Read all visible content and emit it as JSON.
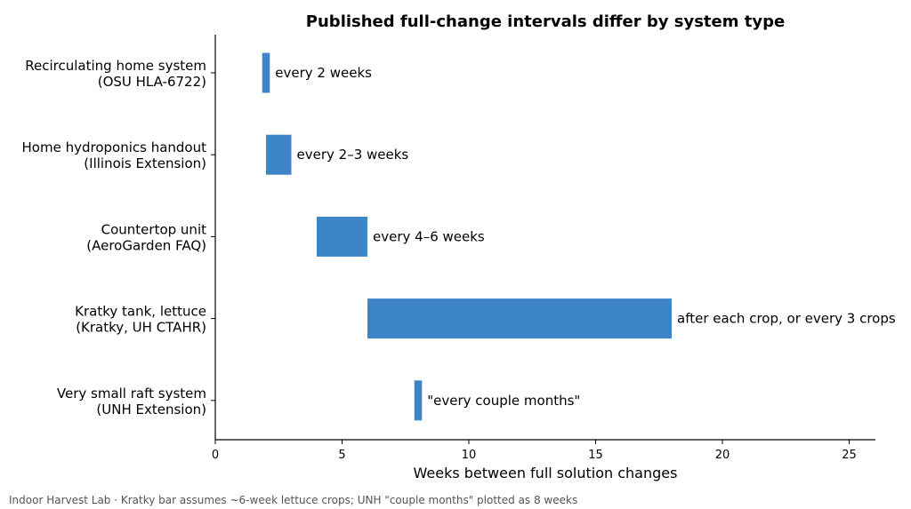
{
  "chart_data": {
    "type": "bar",
    "orientation": "horizontal",
    "title": "Published full-change intervals differ by system type",
    "xlabel": "Weeks between full solution changes",
    "ylabel": "",
    "xlim": [
      0,
      26
    ],
    "xticks": [
      0,
      5,
      10,
      15,
      20,
      25
    ],
    "grid": false,
    "legend": "none",
    "bar_color": "#3d85c6",
    "categories": [
      {
        "label_line1": "Recirculating home system",
        "label_line2": "(OSU HLA-6722)",
        "start": 1.85,
        "end": 2.15,
        "annotation": "every 2 weeks"
      },
      {
        "label_line1": "Home hydroponics handout",
        "label_line2": "(Illinois Extension)",
        "start": 2,
        "end": 3,
        "annotation": "every 2–3 weeks"
      },
      {
        "label_line1": "Countertop unit",
        "label_line2": "(AeroGarden FAQ)",
        "start": 4,
        "end": 6,
        "annotation": "every 4–6 weeks"
      },
      {
        "label_line1": "Kratky tank, lettuce",
        "label_line2": "(Kratky, UH CTAHR)",
        "start": 6,
        "end": 18,
        "annotation": "after each crop, or every 3 crops"
      },
      {
        "label_line1": "Very small raft system",
        "label_line2": "(UNH Extension)",
        "start": 7.85,
        "end": 8.15,
        "annotation": "\"every couple months\""
      }
    ]
  },
  "footnote": "Indoor Harvest Lab · Kratky bar assumes ~6-week lettuce crops; UNH \"couple months\" plotted as 8 weeks"
}
